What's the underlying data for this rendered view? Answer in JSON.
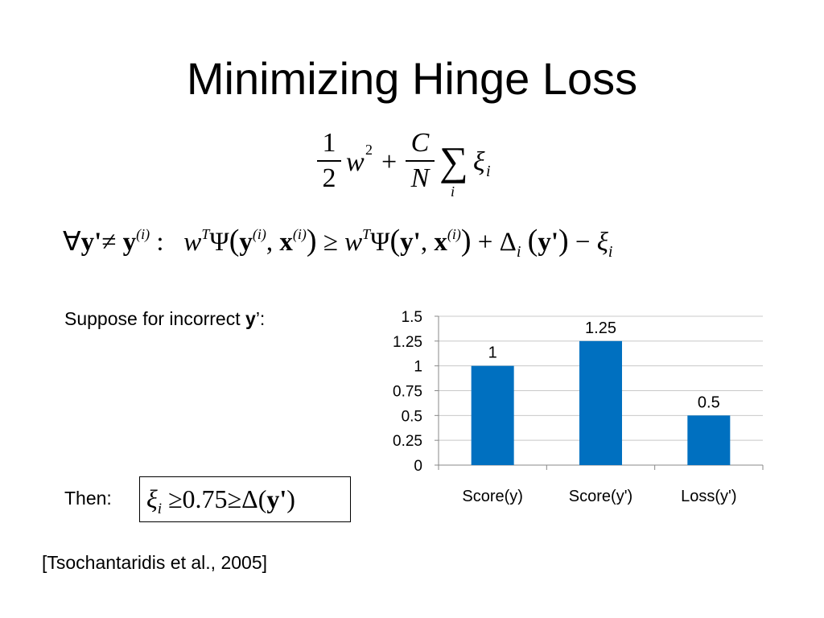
{
  "title": "Minimizing Hinge Loss",
  "objective": {
    "half_num": "1",
    "half_den": "2",
    "w": "w",
    "w_exp": "2",
    "plus": "+",
    "C": "C",
    "N": "N",
    "sum": "∑",
    "sum_index": "i",
    "xi": "ξ",
    "xi_sub": "i"
  },
  "constraint": {
    "forall": "∀",
    "yprime": "y'",
    "neq": "≠",
    "y": "y",
    "sup_i": "(i)",
    "colon": ":",
    "w": "w",
    "T": "T",
    "psi": "Ψ",
    "comma": ",",
    "x": "x",
    "geq": "≥",
    "plus": "+",
    "delta": "Δ",
    "i": "i",
    "minus": "−",
    "xi": "ξ",
    "lparen": "(",
    "rparen": ")"
  },
  "suppose": {
    "prefix": "Suppose for incorrect ",
    "bold": "y",
    "suffix": "’:"
  },
  "then": {
    "label": "Then:",
    "xi": "ξ",
    "sub": "i",
    "rel1": "≥",
    "value": "0.75",
    "rel2": "≥",
    "delta": "Δ(",
    "y": "y'",
    "close": ")"
  },
  "citation": "[Tsochantaridis et al., 2005]",
  "chart_data": {
    "type": "bar",
    "categories": [
      "Score(y)",
      "Score(y')",
      "Loss(y')"
    ],
    "values": [
      1,
      1.25,
      0.5
    ],
    "data_labels": [
      "1",
      "1.25",
      "0.5"
    ],
    "ylim": [
      0,
      1.5
    ],
    "yticks": [
      "0",
      "0.25",
      "0.5",
      "0.75",
      "1",
      "1.25",
      "1.5"
    ],
    "grid": true,
    "bar_color": "#0070C0",
    "title": "",
    "xlabel": "",
    "ylabel": ""
  }
}
